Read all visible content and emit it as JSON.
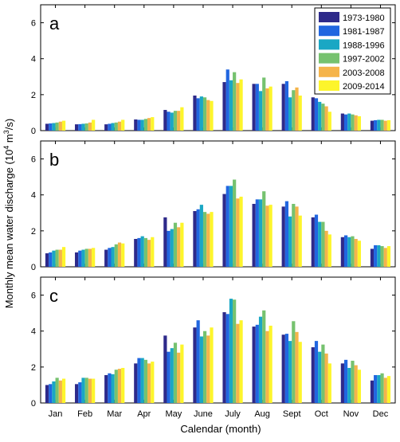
{
  "chart_data": {
    "type": "bar",
    "xlabel": "Calendar (month)",
    "ylabel": "Monthly mean water discharge (10",
    "ylabel_sup": "4",
    "ylabel_unit_pre": " m",
    "ylabel_unit_sup": "3",
    "ylabel_unit_post": "/s)",
    "ylim": [
      0,
      7
    ],
    "yticks": [
      "0",
      "2",
      "4",
      "6"
    ],
    "grid": false,
    "legend_position": "top-right",
    "categories": [
      "Jan",
      "Feb",
      "Mar",
      "Apr",
      "May",
      "June",
      "July",
      "Aug",
      "Sept",
      "Oct",
      "Nov",
      "Dec"
    ],
    "series_names": [
      "1973-1980",
      "1981-1987",
      "1988-1996",
      "1997-2002",
      "2003-2008",
      "2009-2014"
    ],
    "series_colors": [
      "#2e2a8a",
      "#2166e0",
      "#1aa7c4",
      "#76c26f",
      "#f5b44a",
      "#fdf52b"
    ],
    "panels": [
      {
        "label": "a",
        "values": [
          [
            0.38,
            0.4,
            0.42,
            0.45,
            0.5,
            0.55
          ],
          [
            0.35,
            0.36,
            0.38,
            0.4,
            0.45,
            0.6
          ],
          [
            0.35,
            0.38,
            0.42,
            0.45,
            0.5,
            0.6
          ],
          [
            0.62,
            0.6,
            0.6,
            0.65,
            0.7,
            0.75
          ],
          [
            1.15,
            1.05,
            1.0,
            1.1,
            1.1,
            1.3
          ],
          [
            1.95,
            1.8,
            1.9,
            1.85,
            1.7,
            1.65
          ],
          [
            2.7,
            3.4,
            2.8,
            3.25,
            2.65,
            2.85
          ],
          [
            2.6,
            2.6,
            2.2,
            2.95,
            2.35,
            2.45
          ],
          [
            2.6,
            2.75,
            1.85,
            2.25,
            2.4,
            1.95
          ],
          [
            1.85,
            1.8,
            1.6,
            1.5,
            1.35,
            1.05
          ],
          [
            0.95,
            0.9,
            0.95,
            0.9,
            0.85,
            0.8
          ],
          [
            0.55,
            0.58,
            0.6,
            0.6,
            0.55,
            0.58
          ]
        ]
      },
      {
        "label": "b",
        "values": [
          [
            0.75,
            0.8,
            0.9,
            0.95,
            0.95,
            1.1
          ],
          [
            0.8,
            0.9,
            0.95,
            1.0,
            1.0,
            1.05
          ],
          [
            0.95,
            1.05,
            1.1,
            1.25,
            1.35,
            1.3
          ],
          [
            1.55,
            1.6,
            1.7,
            1.6,
            1.5,
            1.65
          ],
          [
            2.75,
            2.0,
            2.1,
            2.45,
            2.2,
            2.45
          ],
          [
            3.1,
            3.2,
            3.45,
            3.05,
            2.95,
            3.05
          ],
          [
            4.05,
            4.5,
            4.5,
            4.85,
            3.8,
            3.9
          ],
          [
            3.5,
            3.75,
            3.75,
            4.2,
            3.4,
            3.45
          ],
          [
            3.35,
            3.65,
            2.8,
            3.5,
            3.35,
            2.85
          ],
          [
            2.75,
            2.9,
            2.5,
            2.5,
            2.0,
            1.8
          ],
          [
            1.65,
            1.75,
            1.65,
            1.7,
            1.55,
            1.45
          ],
          [
            1.0,
            1.2,
            1.2,
            1.15,
            1.05,
            1.15
          ]
        ]
      },
      {
        "label": "c",
        "values": [
          [
            1.0,
            1.05,
            1.2,
            1.4,
            1.25,
            1.35
          ],
          [
            1.05,
            1.15,
            1.4,
            1.4,
            1.35,
            1.35
          ],
          [
            1.55,
            1.65,
            1.6,
            1.85,
            1.9,
            1.95
          ],
          [
            2.2,
            2.5,
            2.5,
            2.4,
            2.2,
            2.3
          ],
          [
            3.75,
            2.85,
            3.05,
            3.35,
            2.8,
            3.25
          ],
          [
            4.2,
            4.6,
            3.7,
            4.0,
            3.75,
            4.2
          ],
          [
            5.05,
            4.95,
            5.8,
            5.75,
            4.4,
            4.6
          ],
          [
            4.25,
            4.35,
            4.8,
            5.15,
            4.0,
            4.3
          ],
          [
            3.8,
            3.85,
            3.45,
            4.55,
            3.95,
            3.4
          ],
          [
            3.1,
            3.45,
            2.85,
            3.25,
            2.75,
            2.2
          ],
          [
            2.2,
            2.4,
            1.95,
            2.35,
            2.1,
            1.85
          ],
          [
            1.25,
            1.55,
            1.55,
            1.65,
            1.4,
            1.5
          ]
        ]
      }
    ]
  }
}
